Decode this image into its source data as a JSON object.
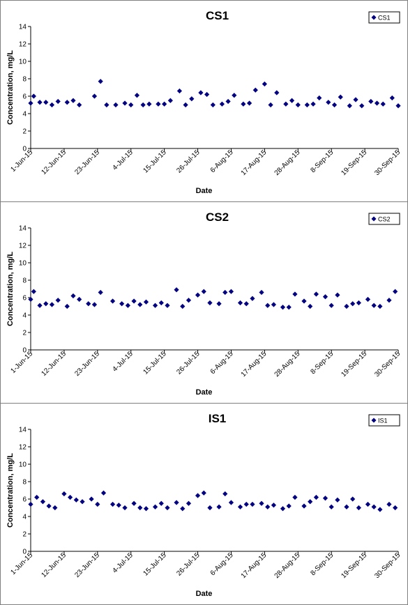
{
  "chart_data": [
    {
      "type": "scatter",
      "title": "CS1",
      "xlabel": "Date",
      "ylabel": "Concentration, mg/L",
      "ylim": [
        0,
        14
      ],
      "yticks": [
        "0",
        "2",
        "4",
        "6",
        "8",
        "10",
        "12",
        "14"
      ],
      "xlim": [
        "2015-06-01",
        "2015-09-30"
      ],
      "xticks": [
        {
          "date": "2015-06-01",
          "label": "1-Jun-15"
        },
        {
          "date": "2015-06-12",
          "label": "12-Jun-15"
        },
        {
          "date": "2015-06-23",
          "label": "23-Jun-15"
        },
        {
          "date": "2015-07-04",
          "label": "4-Jul-15"
        },
        {
          "date": "2015-07-15",
          "label": "15-Jul-15"
        },
        {
          "date": "2015-07-26",
          "label": "26-Jul-15"
        },
        {
          "date": "2015-08-06",
          "label": "6-Aug-15"
        },
        {
          "date": "2015-08-17",
          "label": "17-Aug-15"
        },
        {
          "date": "2015-08-28",
          "label": "28-Aug-15"
        },
        {
          "date": "2015-09-08",
          "label": "8-Sep-15"
        },
        {
          "date": "2015-09-19",
          "label": "19-Sep-15"
        },
        {
          "date": "2015-09-30",
          "label": "30-Sep-15"
        }
      ],
      "grid": false,
      "legend_position": "top-right",
      "color": "#000080",
      "series": [
        {
          "name": "CS1",
          "x": [
            "2015-06-01",
            "2015-06-02",
            "2015-06-04",
            "2015-06-06",
            "2015-06-08",
            "2015-06-10",
            "2015-06-13",
            "2015-06-15",
            "2015-06-17",
            "2015-06-22",
            "2015-06-24",
            "2015-06-26",
            "2015-06-29",
            "2015-07-02",
            "2015-07-04",
            "2015-07-06",
            "2015-07-08",
            "2015-07-10",
            "2015-07-13",
            "2015-07-15",
            "2015-07-17",
            "2015-07-20",
            "2015-07-22",
            "2015-07-24",
            "2015-07-27",
            "2015-07-29",
            "2015-07-31",
            "2015-08-03",
            "2015-08-05",
            "2015-08-07",
            "2015-08-10",
            "2015-08-12",
            "2015-08-14",
            "2015-08-17",
            "2015-08-19",
            "2015-08-21",
            "2015-08-24",
            "2015-08-26",
            "2015-08-28",
            "2015-08-31",
            "2015-09-02",
            "2015-09-04",
            "2015-09-07",
            "2015-09-09",
            "2015-09-11",
            "2015-09-14",
            "2015-09-16",
            "2015-09-18",
            "2015-09-21",
            "2015-09-23",
            "2015-09-25",
            "2015-09-28",
            "2015-09-30"
          ],
          "y": [
            5.2,
            6.0,
            5.3,
            5.3,
            5.0,
            5.4,
            5.3,
            5.5,
            5.0,
            6.0,
            7.7,
            5.0,
            5.0,
            5.2,
            5.0,
            6.1,
            5.0,
            5.1,
            5.1,
            5.1,
            5.5,
            6.6,
            5.0,
            5.7,
            6.4,
            6.2,
            5.0,
            5.1,
            5.4,
            6.1,
            5.1,
            5.2,
            6.7,
            7.4,
            5.0,
            6.4,
            5.1,
            5.5,
            5.0,
            5.0,
            5.1,
            5.8,
            5.3,
            5.0,
            5.9,
            4.9,
            5.6,
            4.9,
            5.4,
            5.2,
            5.1,
            5.8,
            4.9
          ]
        }
      ]
    },
    {
      "type": "scatter",
      "title": "CS2",
      "xlabel": "Date",
      "ylabel": "Concentration, mg/L",
      "ylim": [
        0,
        14
      ],
      "yticks": [
        "0",
        "2",
        "4",
        "6",
        "8",
        "10",
        "12",
        "14"
      ],
      "xlim": [
        "2015-06-01",
        "2015-09-30"
      ],
      "xticks": [
        {
          "date": "2015-06-01",
          "label": "1-Jun-15"
        },
        {
          "date": "2015-06-12",
          "label": "12-Jun-15"
        },
        {
          "date": "2015-06-23",
          "label": "23-Jun-15"
        },
        {
          "date": "2015-07-04",
          "label": "4-Jul-15"
        },
        {
          "date": "2015-07-15",
          "label": "15-Jul-15"
        },
        {
          "date": "2015-07-26",
          "label": "26-Jul-15"
        },
        {
          "date": "2015-08-06",
          "label": "6-Aug-15"
        },
        {
          "date": "2015-08-17",
          "label": "17-Aug-15"
        },
        {
          "date": "2015-08-28",
          "label": "28-Aug-15"
        },
        {
          "date": "2015-09-08",
          "label": "8-Sep-15"
        },
        {
          "date": "2015-09-19",
          "label": "19-Sep-15"
        },
        {
          "date": "2015-09-30",
          "label": "30-Sep-15"
        }
      ],
      "grid": false,
      "legend_position": "top-right",
      "color": "#000080",
      "series": [
        {
          "name": "CS2",
          "x": [
            "2015-06-01",
            "2015-06-02",
            "2015-06-04",
            "2015-06-06",
            "2015-06-08",
            "2015-06-10",
            "2015-06-13",
            "2015-06-15",
            "2015-06-17",
            "2015-06-20",
            "2015-06-22",
            "2015-06-24",
            "2015-06-28",
            "2015-07-01",
            "2015-07-03",
            "2015-07-05",
            "2015-07-07",
            "2015-07-09",
            "2015-07-12",
            "2015-07-14",
            "2015-07-16",
            "2015-07-19",
            "2015-07-21",
            "2015-07-23",
            "2015-07-26",
            "2015-07-28",
            "2015-07-30",
            "2015-08-02",
            "2015-08-04",
            "2015-08-06",
            "2015-08-09",
            "2015-08-11",
            "2015-08-13",
            "2015-08-16",
            "2015-08-18",
            "2015-08-20",
            "2015-08-23",
            "2015-08-25",
            "2015-08-27",
            "2015-08-30",
            "2015-09-01",
            "2015-09-03",
            "2015-09-06",
            "2015-09-08",
            "2015-09-10",
            "2015-09-13",
            "2015-09-15",
            "2015-09-17",
            "2015-09-20",
            "2015-09-22",
            "2015-09-24",
            "2015-09-27",
            "2015-09-29"
          ],
          "y": [
            5.8,
            6.7,
            5.1,
            5.3,
            5.2,
            5.7,
            5.0,
            6.2,
            5.8,
            5.3,
            5.2,
            6.6,
            5.6,
            5.3,
            5.1,
            5.6,
            5.2,
            5.5,
            5.1,
            5.4,
            5.1,
            6.9,
            5.0,
            5.7,
            6.3,
            6.7,
            5.4,
            5.3,
            6.6,
            6.7,
            5.4,
            5.3,
            5.9,
            6.6,
            5.1,
            5.2,
            4.9,
            4.9,
            6.4,
            5.6,
            5.0,
            6.4,
            6.1,
            5.1,
            6.3,
            5.0,
            5.3,
            5.4,
            5.8,
            5.1,
            5.0,
            5.7,
            6.7
          ]
        }
      ]
    },
    {
      "type": "scatter",
      "title": "IS1",
      "xlabel": "Date",
      "ylabel": "Concentration, mg/L",
      "ylim": [
        0,
        14
      ],
      "yticks": [
        "0",
        "2",
        "4",
        "6",
        "8",
        "10",
        "12",
        "14"
      ],
      "xlim": [
        "2015-06-01",
        "2015-09-30"
      ],
      "xticks": [
        {
          "date": "2015-06-01",
          "label": "1-Jun-15"
        },
        {
          "date": "2015-06-12",
          "label": "12-Jun-15"
        },
        {
          "date": "2015-06-23",
          "label": "23-Jun-15"
        },
        {
          "date": "2015-07-04",
          "label": "4-Jul-15"
        },
        {
          "date": "2015-07-15",
          "label": "15-Jul-15"
        },
        {
          "date": "2015-07-26",
          "label": "26-Jul-15"
        },
        {
          "date": "2015-08-06",
          "label": "6-Aug-15"
        },
        {
          "date": "2015-08-17",
          "label": "17-Aug-15"
        },
        {
          "date": "2015-08-28",
          "label": "28-Aug-15"
        },
        {
          "date": "2015-09-08",
          "label": "8-Sep-15"
        },
        {
          "date": "2015-09-19",
          "label": "19-Sep-15"
        },
        {
          "date": "2015-09-30",
          "label": "30-Sep-15"
        }
      ],
      "grid": false,
      "legend_position": "top-right",
      "color": "#000080",
      "series": [
        {
          "name": "IS1",
          "x": [
            "2015-06-01",
            "2015-06-03",
            "2015-06-05",
            "2015-06-07",
            "2015-06-09",
            "2015-06-12",
            "2015-06-14",
            "2015-06-16",
            "2015-06-18",
            "2015-06-21",
            "2015-06-23",
            "2015-06-25",
            "2015-06-28",
            "2015-06-30",
            "2015-07-02",
            "2015-07-05",
            "2015-07-07",
            "2015-07-09",
            "2015-07-12",
            "2015-07-14",
            "2015-07-16",
            "2015-07-19",
            "2015-07-21",
            "2015-07-23",
            "2015-07-26",
            "2015-07-28",
            "2015-07-30",
            "2015-08-02",
            "2015-08-04",
            "2015-08-06",
            "2015-08-09",
            "2015-08-11",
            "2015-08-13",
            "2015-08-16",
            "2015-08-18",
            "2015-08-20",
            "2015-08-23",
            "2015-08-25",
            "2015-08-27",
            "2015-08-30",
            "2015-09-01",
            "2015-09-03",
            "2015-09-06",
            "2015-09-08",
            "2015-09-10",
            "2015-09-13",
            "2015-09-15",
            "2015-09-17",
            "2015-09-20",
            "2015-09-22",
            "2015-09-24",
            "2015-09-27",
            "2015-09-29"
          ],
          "y": [
            5.4,
            6.2,
            5.7,
            5.2,
            5.0,
            6.6,
            6.2,
            5.9,
            5.7,
            6.0,
            5.4,
            6.7,
            5.4,
            5.3,
            5.0,
            5.5,
            5.0,
            4.9,
            5.1,
            5.5,
            5.0,
            5.6,
            4.9,
            5.5,
            6.4,
            6.7,
            5.0,
            5.1,
            6.6,
            5.6,
            5.1,
            5.4,
            5.4,
            5.5,
            5.1,
            5.3,
            4.9,
            5.2,
            6.2,
            5.2,
            5.7,
            6.2,
            6.1,
            5.1,
            5.9,
            5.1,
            6.0,
            5.0,
            5.4,
            5.1,
            4.8,
            5.4,
            5.0
          ]
        }
      ]
    }
  ]
}
